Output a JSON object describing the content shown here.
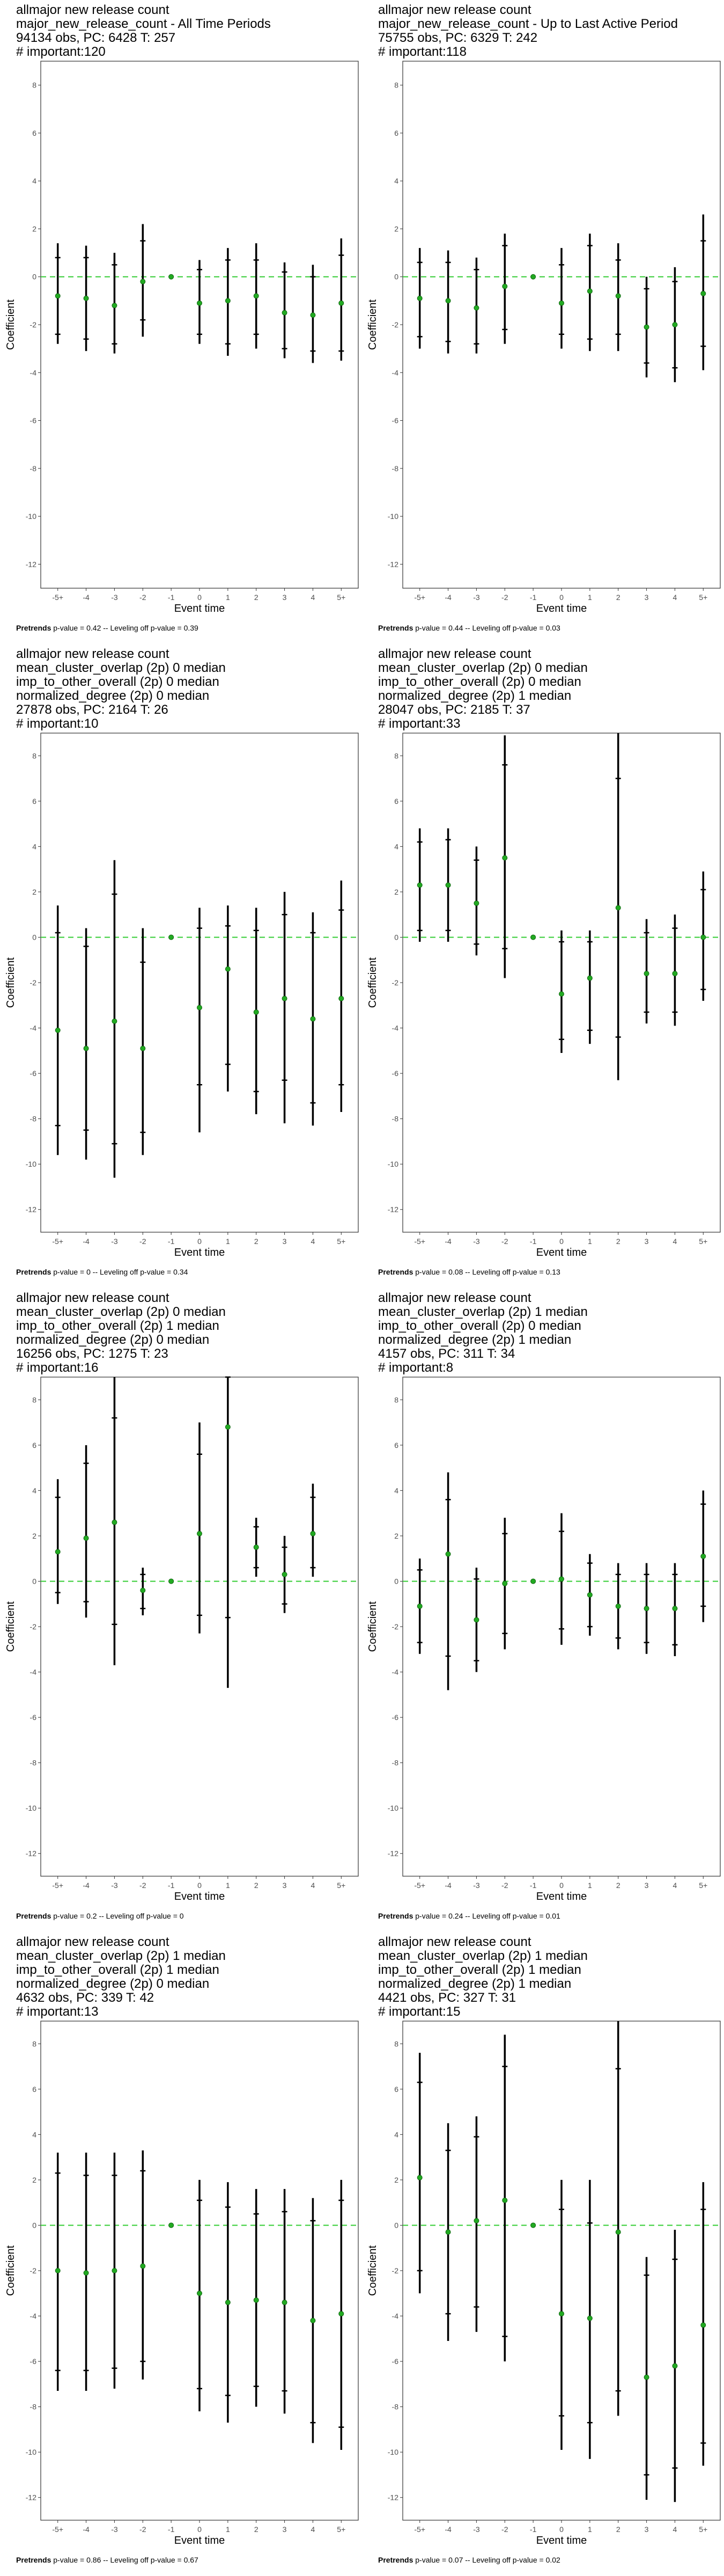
{
  "chart_data": [
    {
      "type": "scatter",
      "title_lines": [
        "allmajor new release count",
        "major_new_release_count - All Time Periods",
        "94134 obs, PC: 6428 T: 257",
        "# important:120"
      ],
      "xlabel": "Event time",
      "ylabel": "Coefficient",
      "x": [
        "-5+",
        "-4",
        "-3",
        "-2",
        "-1",
        "0",
        "1",
        "2",
        "3",
        "4",
        "5+"
      ],
      "ylim": [
        -13,
        9
      ],
      "yticks": [
        -12,
        -10,
        -8,
        -6,
        -4,
        -2,
        0,
        2,
        4,
        6,
        8
      ],
      "estimate": [
        -0.8,
        -0.9,
        -1.2,
        -0.2,
        0,
        -1.1,
        -1.0,
        -0.8,
        -1.5,
        -1.6,
        -1.1
      ],
      "ci_outer": [
        [
          -2.8,
          1.4
        ],
        [
          -3.1,
          1.3
        ],
        [
          -3.2,
          1.0
        ],
        [
          -2.5,
          2.2
        ],
        null,
        [
          -2.8,
          0.7
        ],
        [
          -3.3,
          1.2
        ],
        [
          -3.0,
          1.4
        ],
        [
          -3.4,
          0.6
        ],
        [
          -3.6,
          0.5
        ],
        [
          -3.5,
          1.6
        ]
      ],
      "ci_inner": [
        [
          -2.4,
          0.8
        ],
        [
          -2.6,
          0.8
        ],
        [
          -2.8,
          0.5
        ],
        [
          -1.8,
          1.5
        ],
        null,
        [
          -2.4,
          0.3
        ],
        [
          -2.8,
          0.7
        ],
        [
          -2.4,
          0.7
        ],
        [
          -3.0,
          0.2
        ],
        [
          -3.1,
          0.0
        ],
        [
          -3.1,
          0.9
        ]
      ],
      "footer_bold": "Pretrends",
      "footer_text": " p-value = 0.42 -- Leveling off p-value = 0.39"
    },
    {
      "type": "scatter",
      "title_lines": [
        "allmajor new release count",
        "major_new_release_count - Up to Last Active Period",
        "75755 obs, PC: 6329 T: 242",
        "# important:118"
      ],
      "xlabel": "Event time",
      "ylabel": "Coefficient",
      "x": [
        "-5+",
        "-4",
        "-3",
        "-2",
        "-1",
        "0",
        "1",
        "2",
        "3",
        "4",
        "5+"
      ],
      "ylim": [
        -13,
        9
      ],
      "yticks": [
        -12,
        -10,
        -8,
        -6,
        -4,
        -2,
        0,
        2,
        4,
        6,
        8
      ],
      "estimate": [
        -0.9,
        -1.0,
        -1.3,
        -0.4,
        0,
        -1.1,
        -0.6,
        -0.8,
        -2.1,
        -2.0,
        -0.7
      ],
      "ci_outer": [
        [
          -3.0,
          1.2
        ],
        [
          -3.2,
          1.1
        ],
        [
          -3.2,
          0.8
        ],
        [
          -2.8,
          1.8
        ],
        null,
        [
          -3.0,
          1.2
        ],
        [
          -3.1,
          1.8
        ],
        [
          -3.1,
          1.4
        ],
        [
          -4.2,
          0.0
        ],
        [
          -4.4,
          0.4
        ],
        [
          -3.9,
          2.6
        ]
      ],
      "ci_inner": [
        [
          -2.5,
          0.6
        ],
        [
          -2.7,
          0.6
        ],
        [
          -2.8,
          0.3
        ],
        [
          -2.2,
          1.3
        ],
        null,
        [
          -2.4,
          0.5
        ],
        [
          -2.6,
          1.3
        ],
        [
          -2.4,
          0.7
        ],
        [
          -3.6,
          -0.5
        ],
        [
          -3.8,
          -0.2
        ],
        [
          -2.9,
          1.5
        ]
      ],
      "footer_bold": "Pretrends",
      "footer_text": " p-value = 0.44 -- Leveling off p-value = 0.03"
    },
    {
      "type": "scatter",
      "title_lines": [
        "allmajor new release count",
        "mean_cluster_overlap (2p) 0 median",
        "imp_to_other_overall (2p) 0 median",
        "normalized_degree (2p) 0 median",
        "27878 obs, PC: 2164 T: 26",
        "# important:10"
      ],
      "xlabel": "Event time",
      "ylabel": "Coefficient",
      "x": [
        "-5+",
        "-4",
        "-3",
        "-2",
        "-1",
        "0",
        "1",
        "2",
        "3",
        "4",
        "5+"
      ],
      "ylim": [
        -13,
        9
      ],
      "yticks": [
        -12,
        -10,
        -8,
        -6,
        -4,
        -2,
        0,
        2,
        4,
        6,
        8
      ],
      "estimate": [
        -4.1,
        -4.9,
        -3.7,
        -4.9,
        0,
        -3.1,
        -1.4,
        -3.3,
        -2.7,
        -3.6,
        -2.7
      ],
      "ci_outer": [
        [
          -9.6,
          1.4
        ],
        [
          -9.8,
          0.4
        ],
        [
          -10.6,
          3.4
        ],
        [
          -9.6,
          0.4
        ],
        null,
        [
          -8.6,
          1.3
        ],
        [
          -6.8,
          1.4
        ],
        [
          -7.8,
          1.3
        ],
        [
          -8.2,
          2.0
        ],
        [
          -8.3,
          1.1
        ],
        [
          -7.7,
          2.5
        ]
      ],
      "ci_inner": [
        [
          -8.3,
          0.2
        ],
        [
          -8.5,
          -0.4
        ],
        [
          -9.1,
          1.9
        ],
        [
          -8.6,
          -1.1
        ],
        null,
        [
          -6.5,
          0.4
        ],
        [
          -5.6,
          0.5
        ],
        [
          -6.8,
          0.3
        ],
        [
          -6.3,
          1.0
        ],
        [
          -7.3,
          0.2
        ],
        [
          -6.5,
          1.2
        ]
      ],
      "footer_bold": "Pretrends",
      "footer_text": " p-value = 0 -- Leveling off p-value = 0.34"
    },
    {
      "type": "scatter",
      "title_lines": [
        "allmajor new release count",
        "mean_cluster_overlap (2p) 0 median",
        "imp_to_other_overall (2p) 0 median",
        "normalized_degree (2p) 1 median",
        "28047 obs, PC: 2185 T: 37",
        "# important:33"
      ],
      "xlabel": "Event time",
      "ylabel": "Coefficient",
      "x": [
        "-5+",
        "-4",
        "-3",
        "-2",
        "-1",
        "0",
        "1",
        "2",
        "3",
        "4",
        "5+"
      ],
      "ylim": [
        -13,
        9
      ],
      "yticks": [
        -12,
        -10,
        -8,
        -6,
        -4,
        -2,
        0,
        2,
        4,
        6,
        8
      ],
      "estimate": [
        2.3,
        2.3,
        1.5,
        3.5,
        0,
        -2.5,
        -1.8,
        1.3,
        -1.6,
        -1.6,
        0.0
      ],
      "ci_outer": [
        [
          -0.2,
          4.8
        ],
        [
          -0.2,
          4.8
        ],
        [
          -0.8,
          4.0
        ],
        [
          -1.8,
          8.9
        ],
        null,
        [
          -5.1,
          0.3
        ],
        [
          -4.7,
          0.3
        ],
        [
          -6.3,
          9.0
        ],
        [
          -3.8,
          0.8
        ],
        [
          -3.9,
          1.0
        ],
        [
          -2.8,
          2.9
        ]
      ],
      "ci_inner": [
        [
          0.3,
          4.2
        ],
        [
          0.3,
          4.3
        ],
        [
          -0.3,
          3.4
        ],
        [
          -0.5,
          7.6
        ],
        null,
        [
          -4.5,
          -0.2
        ],
        [
          -4.1,
          -0.2
        ],
        [
          -4.4,
          7.0
        ],
        [
          -3.3,
          0.2
        ],
        [
          -3.3,
          0.4
        ],
        [
          -2.3,
          2.1
        ]
      ],
      "footer_bold": "Pretrends",
      "footer_text": " p-value = 0.08 -- Leveling off p-value = 0.13"
    },
    {
      "type": "scatter",
      "title_lines": [
        "allmajor new release count",
        "mean_cluster_overlap (2p) 0 median",
        "imp_to_other_overall (2p) 1 median",
        "normalized_degree (2p) 0 median",
        "16256 obs, PC: 1275 T: 23",
        "# important:16"
      ],
      "xlabel": "Event time",
      "ylabel": "Coefficient",
      "x": [
        "-5+",
        "-4",
        "-3",
        "-2",
        "-1",
        "0",
        "1",
        "2",
        "3",
        "4",
        "5+"
      ],
      "ylim": [
        -13,
        9
      ],
      "yticks": [
        -12,
        -10,
        -8,
        -6,
        -4,
        -2,
        0,
        2,
        4,
        6,
        8
      ],
      "estimate": [
        1.3,
        1.9,
        2.6,
        -0.4,
        0,
        2.1,
        6.8,
        1.5,
        0.3,
        2.1,
        null
      ],
      "ci_outer": [
        [
          -1.0,
          4.5
        ],
        [
          -1.6,
          6.0
        ],
        [
          -3.7,
          9.0
        ],
        [
          -1.5,
          0.6
        ],
        null,
        [
          -2.3,
          7.0
        ],
        [
          -4.7,
          9.0
        ],
        [
          0.2,
          2.8
        ],
        [
          -1.4,
          2.0
        ],
        [
          0.2,
          4.3
        ],
        null
      ],
      "ci_inner": [
        [
          -0.5,
          3.7
        ],
        [
          -0.9,
          5.2
        ],
        [
          -1.9,
          7.2
        ],
        [
          -1.2,
          0.3
        ],
        null,
        [
          -1.5,
          5.6
        ],
        [
          -1.6,
          9.0
        ],
        [
          0.6,
          2.4
        ],
        [
          -1.0,
          1.5
        ],
        [
          0.6,
          3.7
        ],
        null
      ],
      "footer_bold": "Pretrends",
      "footer_text": " p-value = 0.2 -- Leveling off p-value = 0"
    },
    {
      "type": "scatter",
      "title_lines": [
        "allmajor new release count",
        "mean_cluster_overlap (2p) 1 median",
        "imp_to_other_overall (2p) 0 median",
        "normalized_degree (2p) 1 median",
        "4157 obs, PC: 311 T: 34",
        "# important:8"
      ],
      "xlabel": "Event time",
      "ylabel": "Coefficient",
      "x": [
        "-5+",
        "-4",
        "-3",
        "-2",
        "-1",
        "0",
        "1",
        "2",
        "3",
        "4",
        "5+"
      ],
      "ylim": [
        -13,
        9
      ],
      "yticks": [
        -12,
        -10,
        -8,
        -6,
        -4,
        -2,
        0,
        2,
        4,
        6,
        8
      ],
      "estimate": [
        -1.1,
        1.2,
        -1.7,
        -0.1,
        0,
        0.1,
        -0.6,
        -1.1,
        -1.2,
        -1.2,
        1.1
      ],
      "ci_outer": [
        [
          -3.2,
          1.0
        ],
        [
          -4.8,
          4.8
        ],
        [
          -4.0,
          0.6
        ],
        [
          -3.0,
          2.8
        ],
        null,
        [
          -2.8,
          3.0
        ],
        [
          -2.4,
          1.2
        ],
        [
          -3.0,
          0.8
        ],
        [
          -3.2,
          0.8
        ],
        [
          -3.3,
          0.8
        ],
        [
          -1.8,
          4.0
        ]
      ],
      "ci_inner": [
        [
          -2.7,
          0.5
        ],
        [
          -3.3,
          3.6
        ],
        [
          -3.5,
          0.1
        ],
        [
          -2.3,
          2.1
        ],
        null,
        [
          -2.1,
          2.2
        ],
        [
          -2.0,
          0.8
        ],
        [
          -2.5,
          0.3
        ],
        [
          -2.7,
          0.3
        ],
        [
          -2.8,
          0.3
        ],
        [
          -1.1,
          3.4
        ]
      ],
      "footer_bold": "Pretrends",
      "footer_text": " p-value = 0.24 -- Leveling off p-value = 0.01"
    },
    {
      "type": "scatter",
      "title_lines": [
        "allmajor new release count",
        "mean_cluster_overlap (2p) 1 median",
        "imp_to_other_overall (2p) 1 median",
        "normalized_degree (2p) 0 median",
        "4632 obs, PC: 339 T: 42",
        "# important:13"
      ],
      "xlabel": "Event time",
      "ylabel": "Coefficient",
      "x": [
        "-5+",
        "-4",
        "-3",
        "-2",
        "-1",
        "0",
        "1",
        "2",
        "3",
        "4",
        "5+"
      ],
      "ylim": [
        -13,
        9
      ],
      "yticks": [
        -12,
        -10,
        -8,
        -6,
        -4,
        -2,
        0,
        2,
        4,
        6,
        8
      ],
      "estimate": [
        -2.0,
        -2.1,
        -2.0,
        -1.8,
        0,
        -3.0,
        -3.4,
        -3.3,
        -3.4,
        -4.2,
        -3.9
      ],
      "ci_outer": [
        [
          -7.3,
          3.2
        ],
        [
          -7.3,
          3.2
        ],
        [
          -7.2,
          3.2
        ],
        [
          -6.8,
          3.3
        ],
        null,
        [
          -8.2,
          2.0
        ],
        [
          -8.7,
          1.9
        ],
        [
          -8.0,
          1.6
        ],
        [
          -8.3,
          1.6
        ],
        [
          -9.6,
          1.2
        ],
        [
          -9.9,
          2.0
        ]
      ],
      "ci_inner": [
        [
          -6.4,
          2.3
        ],
        [
          -6.4,
          2.2
        ],
        [
          -6.3,
          2.2
        ],
        [
          -6.0,
          2.4
        ],
        null,
        [
          -7.2,
          1.1
        ],
        [
          -7.5,
          0.8
        ],
        [
          -7.1,
          0.5
        ],
        [
          -7.3,
          0.6
        ],
        [
          -8.7,
          0.2
        ],
        [
          -8.9,
          1.1
        ]
      ],
      "footer_bold": "Pretrends",
      "footer_text": " p-value = 0.86 -- Leveling off p-value = 0.67"
    },
    {
      "type": "scatter",
      "title_lines": [
        "allmajor new release count",
        "mean_cluster_overlap (2p) 1 median",
        "imp_to_other_overall (2p) 1 median",
        "normalized_degree (2p) 1 median",
        "4421 obs, PC: 327 T: 31",
        "# important:15"
      ],
      "xlabel": "Event time",
      "ylabel": "Coefficient",
      "x": [
        "-5+",
        "-4",
        "-3",
        "-2",
        "-1",
        "0",
        "1",
        "2",
        "3",
        "4",
        "5+"
      ],
      "ylim": [
        -13,
        9
      ],
      "yticks": [
        -12,
        -10,
        -8,
        -6,
        -4,
        -2,
        0,
        2,
        4,
        6,
        8
      ],
      "estimate": [
        2.1,
        -0.3,
        0.2,
        1.1,
        0,
        -3.9,
        -4.1,
        -0.3,
        -6.7,
        -6.2,
        -4.4
      ],
      "ci_outer": [
        [
          -3.0,
          7.6
        ],
        [
          -5.1,
          4.5
        ],
        [
          -4.7,
          4.8
        ],
        [
          -6.0,
          8.4
        ],
        null,
        [
          -9.9,
          2.0
        ],
        [
          -10.3,
          2.0
        ],
        [
          -8.4,
          9.0
        ],
        [
          -12.1,
          -1.4
        ],
        [
          -12.2,
          -0.2
        ],
        [
          -10.6,
          1.9
        ]
      ],
      "ci_inner": [
        [
          -2.0,
          6.3
        ],
        [
          -3.9,
          3.3
        ],
        [
          -3.6,
          3.9
        ],
        [
          -4.9,
          7.0
        ],
        null,
        [
          -8.4,
          0.7
        ],
        [
          -8.7,
          0.1
        ],
        [
          -7.3,
          6.9
        ],
        [
          -11.0,
          -2.2
        ],
        [
          -10.7,
          -1.5
        ],
        [
          -9.6,
          0.7
        ]
      ],
      "footer_bold": "Pretrends",
      "footer_text": " p-value = 0.07 -- Leveling off p-value = 0.02"
    }
  ]
}
